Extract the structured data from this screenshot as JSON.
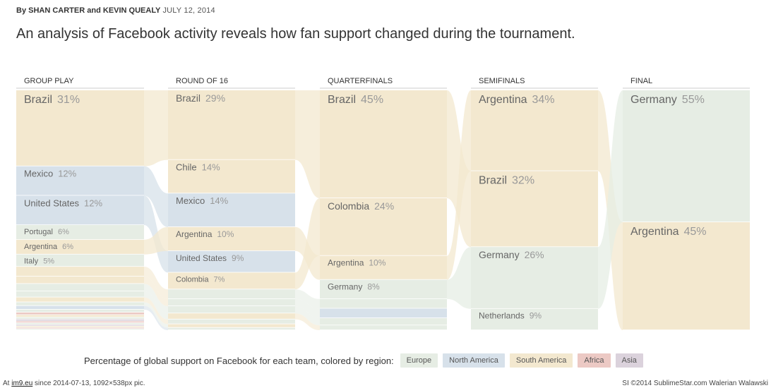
{
  "byline": {
    "prefix": "By",
    "author1": "SHAN CARTER",
    "joiner": "and",
    "author2": "KEVIN QUEALY",
    "date": "JULY 12, 2014"
  },
  "headline": "An analysis of Facebook activity reveals how fan support changed during the tournament.",
  "colors": {
    "Europe": "#e6ede4",
    "North America": "#d7e1ea",
    "South America": "#f3e8cf",
    "Africa": "#ecc9c4",
    "Asia": "#dbd2dc"
  },
  "chart_data": {
    "type": "sankey",
    "unit": "%",
    "stages": [
      {
        "name": "GROUP PLAY",
        "teams": [
          {
            "team": "Brazil",
            "value": 31,
            "region": "South America",
            "label": "Brazil",
            "pct": "31%"
          },
          {
            "team": "Mexico",
            "value": 12,
            "region": "North America",
            "label": "Mexico",
            "pct": "12%"
          },
          {
            "team": "United States",
            "value": 12,
            "region": "North America",
            "label": "United States",
            "pct": "12%"
          },
          {
            "team": "Portugal",
            "value": 6,
            "region": "Europe",
            "label": "Portugal",
            "pct": "6%"
          },
          {
            "team": "Argentina",
            "value": 6,
            "region": "South America",
            "label": "Argentina",
            "pct": "6%"
          },
          {
            "team": "Italy",
            "value": 5,
            "region": "Europe",
            "label": "Italy",
            "pct": "5%"
          },
          {
            "team": "",
            "value": 4,
            "region": "South America"
          },
          {
            "team": "",
            "value": 3,
            "region": "South America"
          },
          {
            "team": "",
            "value": 3,
            "region": "Europe"
          },
          {
            "team": "",
            "value": 2.5,
            "region": "Europe"
          },
          {
            "team": "",
            "value": 2,
            "region": "South America"
          },
          {
            "team": "",
            "value": 1.5,
            "region": "Europe"
          },
          {
            "team": "",
            "value": 1.5,
            "region": "North America"
          },
          {
            "team": "",
            "value": 1.2,
            "region": "Europe"
          },
          {
            "team": "",
            "value": 1,
            "region": "Africa"
          },
          {
            "team": "",
            "value": 1,
            "region": "South America"
          },
          {
            "team": "",
            "value": 0.8,
            "region": "Europe"
          },
          {
            "team": "",
            "value": 0.8,
            "region": "Asia"
          },
          {
            "team": "",
            "value": 0.7,
            "region": "Africa"
          },
          {
            "team": "",
            "value": 0.7,
            "region": "Europe"
          },
          {
            "team": "",
            "value": 0.6,
            "region": "Asia"
          },
          {
            "team": "",
            "value": 0.6,
            "region": "South America"
          },
          {
            "team": "",
            "value": 0.5,
            "region": "Africa"
          },
          {
            "team": "",
            "value": 0.5,
            "region": "Europe"
          }
        ]
      },
      {
        "name": "ROUND OF 16",
        "teams": [
          {
            "team": "Brazil",
            "value": 29,
            "region": "South America",
            "label": "Brazil",
            "pct": "29%"
          },
          {
            "team": "Chile",
            "value": 14,
            "region": "South America",
            "label": "Chile",
            "pct": "14%"
          },
          {
            "team": "Mexico",
            "value": 14,
            "region": "North America",
            "label": "Mexico",
            "pct": "14%"
          },
          {
            "team": "Argentina",
            "value": 10,
            "region": "South America",
            "label": "Argentina",
            "pct": "10%"
          },
          {
            "team": "United States",
            "value": 9,
            "region": "North America",
            "label": "United States",
            "pct": "9%"
          },
          {
            "team": "Colombia",
            "value": 7,
            "region": "South America",
            "label": "Colombia",
            "pct": "7%"
          },
          {
            "team": "",
            "value": 4,
            "region": "Europe"
          },
          {
            "team": "",
            "value": 3,
            "region": "Europe"
          },
          {
            "team": "",
            "value": 3,
            "region": "Europe"
          },
          {
            "team": "",
            "value": 2.5,
            "region": "South America"
          },
          {
            "team": "",
            "value": 2,
            "region": "Europe"
          },
          {
            "team": "",
            "value": 1.5,
            "region": "South America"
          },
          {
            "team": "",
            "value": 1,
            "region": "Europe"
          }
        ]
      },
      {
        "name": "QUARTERFINALS",
        "teams": [
          {
            "team": "Brazil",
            "value": 45,
            "region": "South America",
            "label": "Brazil",
            "pct": "45%"
          },
          {
            "team": "Colombia",
            "value": 24,
            "region": "South America",
            "label": "Colombia",
            "pct": "24%"
          },
          {
            "team": "Argentina",
            "value": 10,
            "region": "South America",
            "label": "Argentina",
            "pct": "10%"
          },
          {
            "team": "Germany",
            "value": 8,
            "region": "Europe",
            "label": "Germany",
            "pct": "8%"
          },
          {
            "team": "",
            "value": 4,
            "region": "Europe"
          },
          {
            "team": "",
            "value": 4,
            "region": "North America"
          },
          {
            "team": "",
            "value": 3,
            "region": "Europe"
          },
          {
            "team": "",
            "value": 2,
            "region": "Europe"
          }
        ]
      },
      {
        "name": "SEMIFINALS",
        "teams": [
          {
            "team": "Argentina",
            "value": 34,
            "region": "South America",
            "label": "Argentina",
            "pct": "34%"
          },
          {
            "team": "Brazil",
            "value": 32,
            "region": "South America",
            "label": "Brazil",
            "pct": "32%"
          },
          {
            "team": "Germany",
            "value": 26,
            "region": "Europe",
            "label": "Germany",
            "pct": "26%"
          },
          {
            "team": "Netherlands",
            "value": 9,
            "region": "Europe",
            "label": "Netherlands",
            "pct": "9%"
          }
        ]
      },
      {
        "name": "FINAL",
        "teams": [
          {
            "team": "Germany",
            "value": 55,
            "region": "Europe",
            "label": "Germany",
            "pct": "55%"
          },
          {
            "team": "Argentina",
            "value": 45,
            "region": "South America",
            "label": "Argentina",
            "pct": "45%"
          }
        ]
      }
    ]
  },
  "legend": {
    "label": "Percentage of global support on Facebook for each team, colored by region:",
    "items": [
      "Europe",
      "North America",
      "South America",
      "Africa",
      "Asia"
    ]
  },
  "footer": {
    "left_prefix": "At",
    "left_link": "im9.eu",
    "left_suffix": "since 2014-07-13, 1092×538px pic.",
    "right": "SI ©2014 SublimeStar.com Walerian Walawski"
  }
}
